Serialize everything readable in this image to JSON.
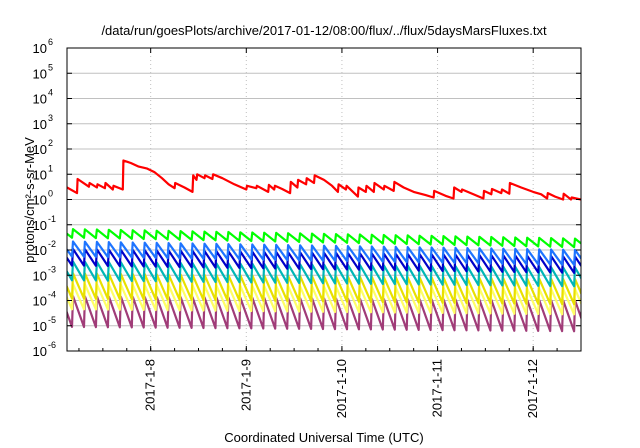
{
  "colors": {
    "series1": "#ff0000",
    "series2": "#00ff00",
    "series3": "#1e74ff",
    "series4": "#0000c8",
    "series5": "#00b6b6",
    "series6": "#e8e000",
    "series7": "#ffff66",
    "series8": "#a03c78",
    "axis": "#000000",
    "grid": "#c0c0c0"
  },
  "chart_data": {
    "type": "line",
    "title": "/data/run/goesPlots/archive/2017-01-12/08:00/flux/../flux/5daysMarsFluxes.txt",
    "xlabel": "Coordinated Universal Time (UTC)",
    "ylabel": "protons/cm²-s-sr-MeV",
    "y_scale": "log",
    "ylim": [
      1e-06,
      1000000.0
    ],
    "y_ticks": [
      {
        "value": 1e-06,
        "base": "10",
        "exp": "-6"
      },
      {
        "value": 1e-05,
        "base": "10",
        "exp": "-5"
      },
      {
        "value": 0.0001,
        "base": "10",
        "exp": "-4"
      },
      {
        "value": 0.001,
        "base": "10",
        "exp": "-3"
      },
      {
        "value": 0.01,
        "base": "10",
        "exp": "-2"
      },
      {
        "value": 0.1,
        "base": "10",
        "exp": "-1"
      },
      {
        "value": 1,
        "base": "10",
        "exp": "0"
      },
      {
        "value": 10,
        "base": "10",
        "exp": "1"
      },
      {
        "value": 100,
        "base": "10",
        "exp": "2"
      },
      {
        "value": 1000,
        "base": "10",
        "exp": "3"
      },
      {
        "value": 10000,
        "base": "10",
        "exp": "4"
      },
      {
        "value": 100000,
        "base": "10",
        "exp": "5"
      },
      {
        "value": 1000000,
        "base": "10",
        "exp": "6"
      }
    ],
    "xlim": [
      "2017-01-07T03:00",
      "2017-01-12T12:00"
    ],
    "x_ticks": [
      {
        "date": "2017-01-08T00:00",
        "label": "2017-1-8"
      },
      {
        "date": "2017-01-09T00:00",
        "label": "2017-1-9"
      },
      {
        "date": "2017-01-10T00:00",
        "label": "2017-1-10"
      },
      {
        "date": "2017-01-11T00:00",
        "label": "2017-1-11"
      },
      {
        "date": "2017-01-12T00:00",
        "label": "2017-1-12"
      }
    ],
    "grid": true,
    "series": [
      {
        "color_key": "series1",
        "points": [
          [
            "2017-01-07T03:00",
            3.0
          ],
          [
            "2017-01-07T05:30",
            1.8
          ],
          [
            "2017-01-07T05:40",
            6.5
          ],
          [
            "2017-01-07T08:30",
            3.2
          ],
          [
            "2017-01-07T08:40",
            4.5
          ],
          [
            "2017-01-07T10:30",
            3.0
          ],
          [
            "2017-01-07T10:40",
            4.0
          ],
          [
            "2017-01-07T12:30",
            2.8
          ],
          [
            "2017-01-07T12:40",
            4.5
          ],
          [
            "2017-01-07T14:30",
            2.5
          ],
          [
            "2017-01-07T14:40",
            3.5
          ],
          [
            "2017-01-07T17:00",
            2.5
          ],
          [
            "2017-01-07T17:10",
            35
          ],
          [
            "2017-01-07T19:00",
            28
          ],
          [
            "2017-01-07T21:00",
            20
          ],
          [
            "2017-01-07T23:00",
            17
          ],
          [
            "2017-01-08T01:00",
            12
          ],
          [
            "2017-01-08T02:50",
            7.0
          ],
          [
            "2017-01-08T04:30",
            4.0
          ],
          [
            "2017-01-08T06:00",
            2.8
          ],
          [
            "2017-01-08T06:10",
            4.5
          ],
          [
            "2017-01-08T08:30",
            3.0
          ],
          [
            "2017-01-08T10:30",
            2.0
          ],
          [
            "2017-01-08T10:40",
            9.0
          ],
          [
            "2017-01-08T11:30",
            6.0
          ],
          [
            "2017-01-08T11:40",
            10
          ],
          [
            "2017-01-08T13:30",
            7.0
          ],
          [
            "2017-01-08T13:40",
            9.0
          ],
          [
            "2017-01-08T15:30",
            6.5
          ],
          [
            "2017-01-08T15:40",
            10
          ],
          [
            "2017-01-08T18:00",
            7.0
          ],
          [
            "2017-01-08T21:00",
            4.0
          ],
          [
            "2017-01-09T00:00",
            2.5
          ],
          [
            "2017-01-09T00:10",
            3.5
          ],
          [
            "2017-01-09T02:30",
            2.8
          ],
          [
            "2017-01-09T02:40",
            3.5
          ],
          [
            "2017-01-09T05:30",
            2.0
          ],
          [
            "2017-01-09T05:40",
            3.8
          ],
          [
            "2017-01-09T07:00",
            2.5
          ],
          [
            "2017-01-09T07:10",
            3.5
          ],
          [
            "2017-01-09T09:00",
            2.6
          ],
          [
            "2017-01-09T11:00",
            1.8
          ],
          [
            "2017-01-09T11:10",
            5.0
          ],
          [
            "2017-01-09T12:50",
            3.0
          ],
          [
            "2017-01-09T13:00",
            6.0
          ],
          [
            "2017-01-09T15:00",
            4.0
          ],
          [
            "2017-01-09T15:10",
            7.0
          ],
          [
            "2017-01-09T17:00",
            4.5
          ],
          [
            "2017-01-09T17:10",
            9.0
          ],
          [
            "2017-01-09T19:30",
            6.0
          ],
          [
            "2017-01-09T21:30",
            3.5
          ],
          [
            "2017-01-09T23:00",
            2.0
          ],
          [
            "2017-01-09T23:10",
            4.0
          ],
          [
            "2017-01-10T01:00",
            2.5
          ],
          [
            "2017-01-10T01:10",
            3.5
          ],
          [
            "2017-01-10T04:00",
            1.3
          ],
          [
            "2017-01-10T04:10",
            3.0
          ],
          [
            "2017-01-10T06:00",
            2.0
          ],
          [
            "2017-01-10T06:10",
            3.5
          ],
          [
            "2017-01-10T08:00",
            2.0
          ],
          [
            "2017-01-10T08:10",
            4.5
          ],
          [
            "2017-01-10T10:30",
            2.5
          ],
          [
            "2017-01-10T10:40",
            3.5
          ],
          [
            "2017-01-10T13:00",
            2.2
          ],
          [
            "2017-01-10T13:10",
            5.0
          ],
          [
            "2017-01-10T15:30",
            3.0
          ],
          [
            "2017-01-10T18:00",
            2.0
          ],
          [
            "2017-01-10T21:00",
            1.5
          ],
          [
            "2017-01-10T23:00",
            1.2
          ],
          [
            "2017-01-10T23:10",
            2.2
          ],
          [
            "2017-01-11T02:00",
            1.4
          ],
          [
            "2017-01-11T04:00",
            1.1
          ],
          [
            "2017-01-11T04:10",
            3.0
          ],
          [
            "2017-01-11T06:00",
            2.0
          ],
          [
            "2017-01-11T06:10",
            2.5
          ],
          [
            "2017-01-11T09:00",
            1.6
          ],
          [
            "2017-01-11T11:30",
            1.1
          ],
          [
            "2017-01-11T11:40",
            2.2
          ],
          [
            "2017-01-11T13:30",
            1.6
          ],
          [
            "2017-01-11T13:40",
            2.6
          ],
          [
            "2017-01-11T16:00",
            1.8
          ],
          [
            "2017-01-11T16:10",
            2.5
          ],
          [
            "2017-01-11T18:00",
            1.7
          ],
          [
            "2017-01-11T18:10",
            4.5
          ],
          [
            "2017-01-11T21:00",
            3.0
          ],
          [
            "2017-01-12T00:00",
            2.0
          ],
          [
            "2017-01-12T02:00",
            1.6
          ],
          [
            "2017-01-12T03:30",
            1.1
          ],
          [
            "2017-01-12T03:40",
            1.8
          ],
          [
            "2017-01-12T05:30",
            1.3
          ],
          [
            "2017-01-12T07:30",
            1.0
          ],
          [
            "2017-01-12T07:40",
            1.7
          ],
          [
            "2017-01-12T09:30",
            1.0
          ],
          [
            "2017-01-12T09:40",
            1.2
          ],
          [
            "2017-01-12T12:00",
            1.0
          ]
        ]
      },
      {
        "color_key": "series2",
        "sawtooth": {
          "period_hours": 3,
          "peak_start": 0.068,
          "peak_end": 0.028,
          "trough_ratio": 0.45
        }
      },
      {
        "color_key": "series3",
        "sawtooth": {
          "period_hours": 3,
          "peak_start": 0.022,
          "peak_end": 0.01,
          "trough_ratio": 0.25
        }
      },
      {
        "color_key": "series4",
        "sawtooth": {
          "period_hours": 3,
          "peak_start": 0.011,
          "peak_end": 0.0055,
          "trough_ratio": 0.22
        }
      },
      {
        "color_key": "series5",
        "sawtooth": {
          "period_hours": 3,
          "peak_start": 0.0035,
          "peak_end": 0.002,
          "trough_ratio": 0.18
        }
      },
      {
        "color_key": "series6",
        "sawtooth": {
          "period_hours": 3,
          "peak_start": 0.0012,
          "peak_end": 0.0007,
          "trough_ratio": 0.1
        }
      },
      {
        "color_key": "series7",
        "sawtooth": {
          "period_hours": 3,
          "peak_start": 0.00045,
          "peak_end": 0.00028,
          "trough_ratio": 0.1
        }
      },
      {
        "color_key": "series8",
        "sawtooth": {
          "period_hours": 3,
          "peak_start": 0.00015,
          "peak_end": 0.0001,
          "trough_ratio": 0.06
        }
      }
    ]
  }
}
